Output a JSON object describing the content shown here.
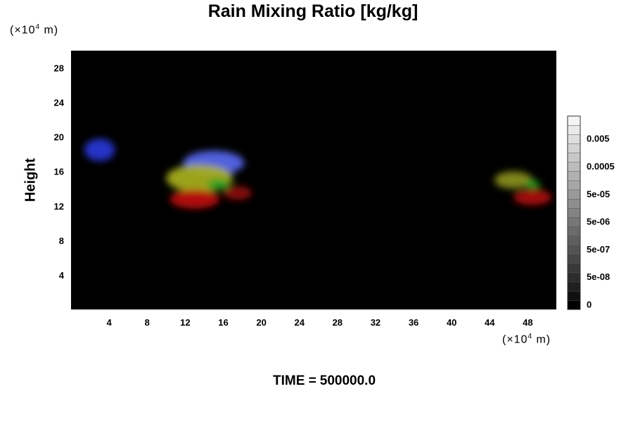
{
  "chart_data": {
    "type": "heatmap",
    "title": "Rain Mixing Ratio [kg/kg]",
    "ylabel": "Height",
    "xlabel": "",
    "x_unit": {
      "prefix": "(×10",
      "exp": "4",
      "suffix": " m)"
    },
    "y_unit": {
      "prefix": "(×10",
      "exp": "4",
      "suffix": " m)"
    },
    "xlim": [
      0,
      51
    ],
    "ylim": [
      0,
      30
    ],
    "x_ticks": [
      4,
      8,
      12,
      16,
      20,
      24,
      28,
      32,
      36,
      40,
      44,
      48
    ],
    "y_ticks": [
      4,
      8,
      12,
      16,
      20,
      24,
      28
    ],
    "grid": false,
    "background_color": "#000000",
    "colorbar": {
      "labels": [
        "0",
        "5e-08",
        "5e-07",
        "5e-06",
        "5e-05",
        "0.0005",
        "0.005"
      ],
      "levels": 21,
      "range": [
        "#000000",
        "#f4f4f4"
      ]
    },
    "features": [
      {
        "color": "#2838d8",
        "x": 3.0,
        "y": 18.5,
        "rx": 1.6,
        "ry": 1.3
      },
      {
        "color": "#5868f0",
        "x": 15.0,
        "y": 17.0,
        "rx": 3.2,
        "ry": 1.4
      },
      {
        "color": "#a8b020",
        "x": 13.5,
        "y": 15.2,
        "rx": 3.5,
        "ry": 1.6
      },
      {
        "color": "#10a020",
        "x": 15.5,
        "y": 14.5,
        "rx": 1.2,
        "ry": 0.6
      },
      {
        "color": "#c01010",
        "x": 13.0,
        "y": 12.8,
        "rx": 2.6,
        "ry": 1.1
      },
      {
        "color": "#901010",
        "x": 17.5,
        "y": 13.5,
        "rx": 1.5,
        "ry": 0.8
      },
      {
        "color": "#8a9020",
        "x": 46.5,
        "y": 15.0,
        "rx": 2.0,
        "ry": 1.0
      },
      {
        "color": "#10a020",
        "x": 48.5,
        "y": 14.5,
        "rx": 0.8,
        "ry": 0.5
      },
      {
        "color": "#b01010",
        "x": 48.5,
        "y": 13.0,
        "rx": 2.0,
        "ry": 0.9
      }
    ]
  },
  "time_label": "TIME =",
  "time_value": "500000.0"
}
